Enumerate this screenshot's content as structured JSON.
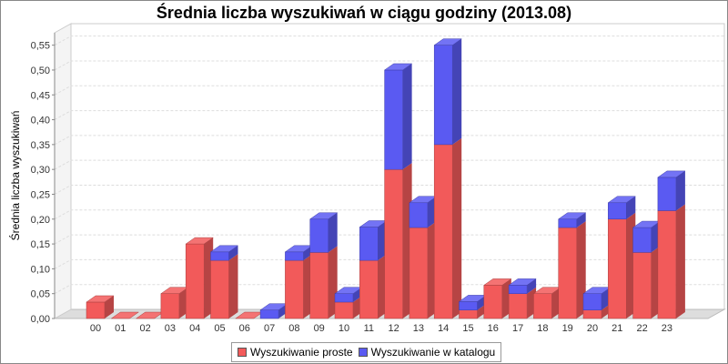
{
  "chart_data": {
    "type": "bar",
    "stacked": true,
    "three_d": true,
    "title": "Średnia liczba wyszukiwań w ciągu godziny (2013.08)",
    "xlabel": "",
    "ylabel": "Średnia liczba wyszukiwań",
    "ylim": [
      0,
      0.575
    ],
    "yticks": [
      "0,00",
      "0,05",
      "0,10",
      "0,15",
      "0,20",
      "0,25",
      "0,30",
      "0,35",
      "0,40",
      "0,45",
      "0,50",
      "0,55"
    ],
    "grid": true,
    "legend_position": "bottom",
    "categories": [
      "00",
      "01",
      "02",
      "03",
      "04",
      "05",
      "06",
      "07",
      "08",
      "09",
      "10",
      "11",
      "12",
      "13",
      "14",
      "15",
      "16",
      "17",
      "18",
      "19",
      "20",
      "21",
      "22",
      "23"
    ],
    "series": [
      {
        "name": "Wyszukiwanie proste",
        "color": "#f25a5a",
        "values": [
          0.033,
          0,
          0,
          0.05,
          0.15,
          0.117,
          0,
          0,
          0.117,
          0.133,
          0.033,
          0.117,
          0.3,
          0.183,
          0.35,
          0.017,
          0.067,
          0.05,
          0.05,
          0.183,
          0.017,
          0.2,
          0.133,
          0.217
        ]
      },
      {
        "name": "Wyszukiwanie w katalogu",
        "color": "#5a5af2",
        "values": [
          0,
          0,
          0,
          0,
          0,
          0.017,
          0,
          0.017,
          0.017,
          0.067,
          0.017,
          0.067,
          0.2,
          0.05,
          0.2,
          0.017,
          0,
          0.017,
          0,
          0.017,
          0.033,
          0.033,
          0.05,
          0.067
        ]
      }
    ]
  }
}
